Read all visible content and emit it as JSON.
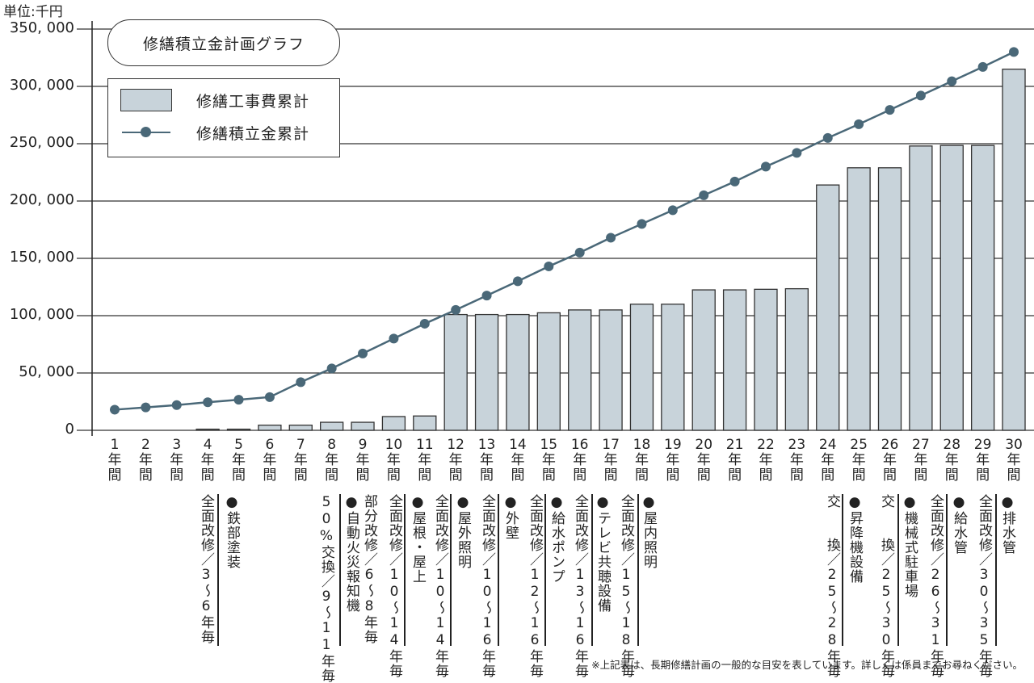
{
  "unit_label": "単位:千円",
  "footnote": "※上記表は、長期修繕計画の一般的な目安を表しています。詳しくは係員までお尋ねください。",
  "colors": {
    "bar": "#c8d3da",
    "line": "#4a6878",
    "grid": "#333333"
  },
  "chart_data": {
    "type": "bar+line",
    "title": "修繕積立金計画グラフ",
    "ylabel": "単位:千円",
    "ylim": [
      0,
      350000
    ],
    "yticks": [
      "0",
      "50, 000",
      "100, 000",
      "150, 000",
      "200, 000",
      "250, 000",
      "300, 000",
      "350, 000"
    ],
    "ytick_values": [
      0,
      50000,
      100000,
      150000,
      200000,
      250000,
      300000,
      350000
    ],
    "grid": true,
    "legend_position": "top-left",
    "categories": [
      {
        "num": "1",
        "a": "年",
        "b": "間"
      },
      {
        "num": "2",
        "a": "年",
        "b": "間"
      },
      {
        "num": "3",
        "a": "年",
        "b": "間"
      },
      {
        "num": "4",
        "a": "年",
        "b": "間"
      },
      {
        "num": "5",
        "a": "年",
        "b": "間"
      },
      {
        "num": "6",
        "a": "年",
        "b": "間"
      },
      {
        "num": "7",
        "a": "年",
        "b": "間"
      },
      {
        "num": "8",
        "a": "年",
        "b": "間"
      },
      {
        "num": "9",
        "a": "年",
        "b": "間"
      },
      {
        "num": "10",
        "a": "年",
        "b": "間"
      },
      {
        "num": "11",
        "a": "年",
        "b": "間"
      },
      {
        "num": "12",
        "a": "年",
        "b": "間"
      },
      {
        "num": "13",
        "a": "年",
        "b": "間"
      },
      {
        "num": "14",
        "a": "年",
        "b": "間"
      },
      {
        "num": "15",
        "a": "年",
        "b": "間"
      },
      {
        "num": "16",
        "a": "年",
        "b": "間"
      },
      {
        "num": "17",
        "a": "年",
        "b": "間"
      },
      {
        "num": "18",
        "a": "年",
        "b": "間"
      },
      {
        "num": "19",
        "a": "年",
        "b": "間"
      },
      {
        "num": "20",
        "a": "年",
        "b": "間"
      },
      {
        "num": "21",
        "a": "年",
        "b": "間"
      },
      {
        "num": "22",
        "a": "年",
        "b": "間"
      },
      {
        "num": "23",
        "a": "年",
        "b": "間"
      },
      {
        "num": "24",
        "a": "年",
        "b": "間"
      },
      {
        "num": "25",
        "a": "年",
        "b": "間"
      },
      {
        "num": "26",
        "a": "年",
        "b": "間"
      },
      {
        "num": "27",
        "a": "年",
        "b": "間"
      },
      {
        "num": "28",
        "a": "年",
        "b": "間"
      },
      {
        "num": "29",
        "a": "年",
        "b": "間"
      },
      {
        "num": "30",
        "a": "年",
        "b": "間"
      }
    ],
    "series": [
      {
        "name": "修繕工事費累計",
        "type": "bar",
        "values": [
          0,
          0,
          0,
          1000,
          1000,
          4500,
          4500,
          7000,
          7000,
          12000,
          12500,
          101000,
          101000,
          101000,
          102500,
          105000,
          105000,
          110000,
          110000,
          122500,
          122500,
          123000,
          123500,
          214000,
          229000,
          229000,
          248000,
          248500,
          248500,
          315000
        ]
      },
      {
        "name": "修繕積立金累計",
        "type": "line",
        "values": [
          18000,
          20000,
          22000,
          24500,
          26700,
          29000,
          42000,
          54000,
          67000,
          80000,
          93000,
          105000,
          117500,
          130000,
          143000,
          155000,
          168000,
          180000,
          192000,
          205000,
          217000,
          230000,
          242000,
          255000,
          267000,
          279500,
          292000,
          304500,
          317000,
          330000
        ]
      }
    ]
  },
  "annotations": [
    {
      "notes": [
        "全面改修／3～6年毎"
      ],
      "item": "●鉄部塗装"
    },
    {
      "notes": [
        "50%交換／9～11年毎"
      ],
      "item": "●自動火災報知機"
    },
    {
      "notes": [
        "部分改修／6～8年毎",
        "全面改修／10～14年毎"
      ],
      "item": "●屋根・屋上"
    },
    {
      "notes": [
        "全面改修／10～14年毎"
      ],
      "item": "●屋外照明"
    },
    {
      "notes": [
        "全面改修／10～16年毎"
      ],
      "item": "●外壁"
    },
    {
      "notes": [
        "全面改修／12～16年毎"
      ],
      "item": "●給水ポンプ"
    },
    {
      "notes": [
        "全面改修／13～16年毎"
      ],
      "item": "●テレビ共聴設備"
    },
    {
      "notes": [
        "全面改修／15～18年毎"
      ],
      "item": "●屋内照明"
    },
    {
      "notes": [
        "交　　換／25～28年毎"
      ],
      "item": "●昇降機設備"
    },
    {
      "notes": [
        "交　　換／25～30年毎"
      ],
      "item": "●機械式駐車場"
    },
    {
      "notes": [
        "全面改修／26～31年毎"
      ],
      "item": "●給水管"
    },
    {
      "notes": [
        "全面改修／30～35年毎"
      ],
      "item": "●排水管"
    }
  ]
}
